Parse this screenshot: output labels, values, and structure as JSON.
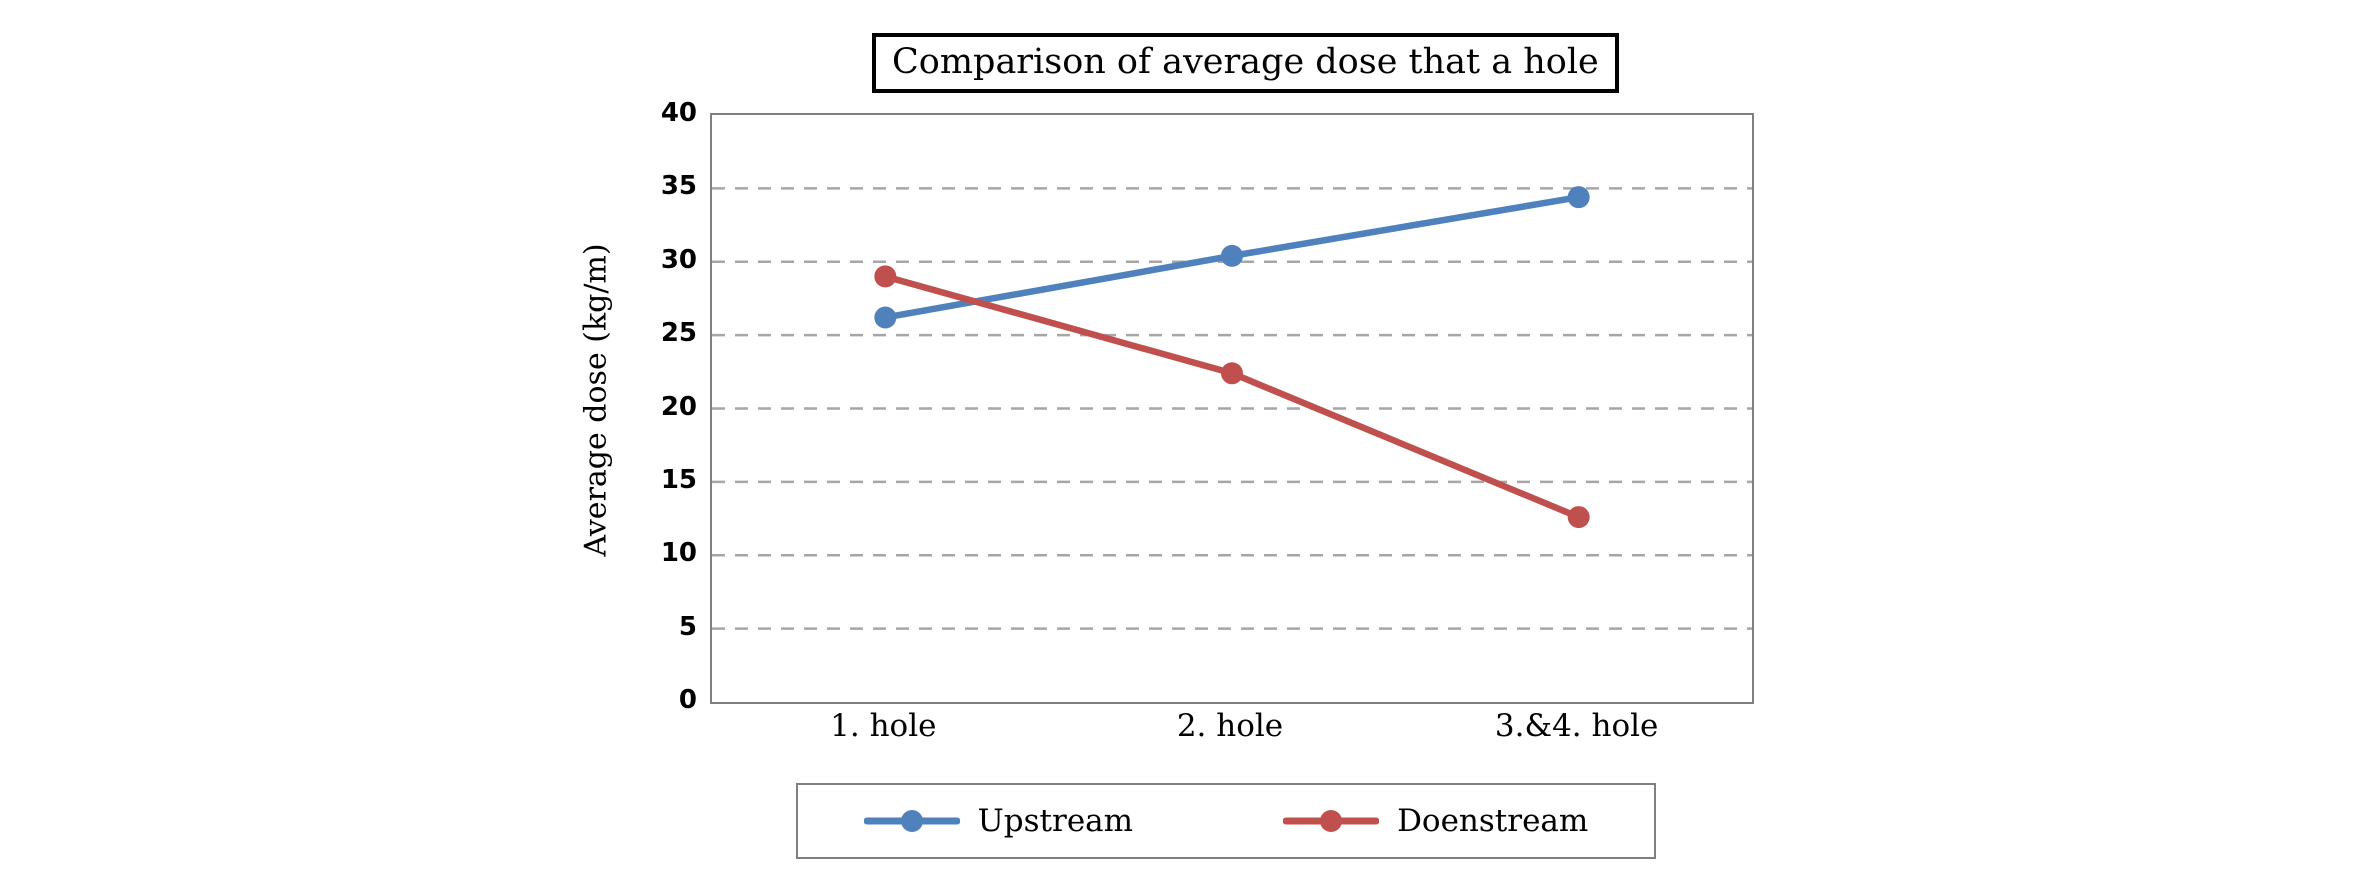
{
  "chart_data": {
    "type": "line",
    "title": "Comparison of average dose that a hole",
    "xlabel": "",
    "ylabel": "Average dose (kg/m)",
    "categories": [
      "1. hole",
      "2. hole",
      "3.&4. hole"
    ],
    "series": [
      {
        "name": "Upstream",
        "color": "#4F81BD",
        "values": [
          26.2,
          30.4,
          34.4
        ]
      },
      {
        "name": "Doenstream",
        "color": "#C0504D",
        "values": [
          29.0,
          22.4,
          12.6
        ]
      }
    ],
    "ylim": [
      0,
      40
    ],
    "yticks": [
      0,
      5,
      10,
      15,
      20,
      25,
      30,
      35,
      40
    ],
    "grid": "horizontal dashed gridlines at each y tick",
    "legend_position": "bottom"
  },
  "colors": {
    "background": "#FFFFFF",
    "plot_border": "#7F7F7F",
    "gridline": "#A6A6A6",
    "title_border": "#000000",
    "legend_border": "#808080",
    "text": "#000000"
  }
}
